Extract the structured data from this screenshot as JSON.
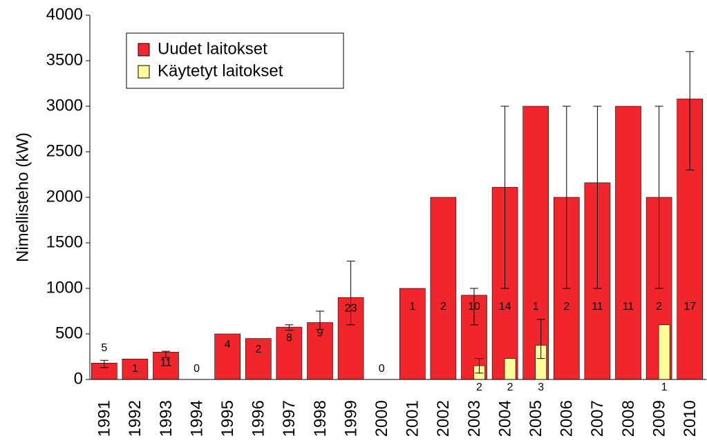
{
  "chart_data": {
    "type": "bar",
    "ylabel": "Nimellisteho (kW)",
    "categories": [
      "1991",
      "1992",
      "1993",
      "1994",
      "1995",
      "1996",
      "1997",
      "1998",
      "1999",
      "2000",
      "2001",
      "2002",
      "2003",
      "2004",
      "2005",
      "2006",
      "2007",
      "2008",
      "2009",
      "2010"
    ],
    "ylim": [
      0,
      4000
    ],
    "yticks": [
      0,
      500,
      1000,
      1500,
      2000,
      2500,
      3000,
      3500,
      4000
    ],
    "series": [
      {
        "name": "Uudet laitokset",
        "color": "#f0262c",
        "values": [
          180,
          225,
          300,
          0,
          500,
          450,
          575,
          625,
          900,
          0,
          1000,
          2000,
          925,
          2110,
          3000,
          2000,
          2160,
          3000,
          2000,
          3080
        ],
        "error_low": [
          130,
          null,
          240,
          null,
          null,
          null,
          540,
          550,
          600,
          null,
          null,
          null,
          600,
          1000,
          null,
          1000,
          1000,
          null,
          1000,
          2300
        ],
        "error_high": [
          210,
          null,
          310,
          null,
          null,
          null,
          600,
          750,
          1300,
          null,
          null,
          null,
          1000,
          3000,
          null,
          3000,
          3000,
          null,
          3000,
          3600
        ],
        "counts": [
          5,
          1,
          11,
          0,
          4,
          2,
          8,
          9,
          23,
          0,
          1,
          2,
          10,
          14,
          1,
          2,
          11,
          11,
          2,
          17
        ]
      },
      {
        "name": "Käytetyt laitokset",
        "color": "#ffff99",
        "values": [
          null,
          null,
          null,
          null,
          null,
          null,
          null,
          null,
          null,
          null,
          null,
          null,
          150,
          230,
          375,
          null,
          null,
          null,
          600,
          null
        ],
        "error_low": [
          null,
          null,
          null,
          null,
          null,
          null,
          null,
          null,
          null,
          null,
          null,
          null,
          70,
          null,
          230,
          null,
          null,
          null,
          null,
          null
        ],
        "error_high": [
          null,
          null,
          null,
          null,
          null,
          null,
          null,
          null,
          null,
          null,
          null,
          null,
          230,
          null,
          660,
          null,
          null,
          null,
          null,
          null
        ],
        "counts": [
          null,
          null,
          null,
          null,
          null,
          null,
          null,
          null,
          null,
          null,
          null,
          null,
          2,
          2,
          3,
          null,
          null,
          null,
          1,
          null
        ]
      }
    ]
  }
}
